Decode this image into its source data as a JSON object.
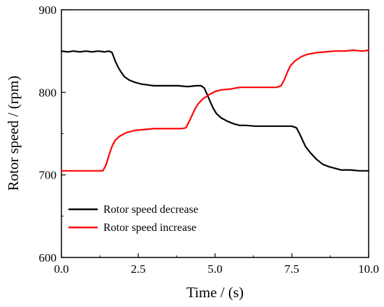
{
  "chart_data": {
    "type": "line",
    "title": "",
    "xlabel": "Time / (s)",
    "ylabel": "Rotor speed / (rpm)",
    "xlim": [
      0,
      10
    ],
    "ylim": [
      600,
      900
    ],
    "xticks": [
      "0.0",
      "2.5",
      "5.0",
      "7.5",
      "10.0"
    ],
    "yticks": [
      "600",
      "700",
      "800",
      "900"
    ],
    "grid": false,
    "legend_position": "bottom-left",
    "series": [
      {
        "name": "Rotor speed decrease",
        "color": "#000000",
        "points": [
          [
            0.0,
            850
          ],
          [
            0.2,
            849
          ],
          [
            0.4,
            850
          ],
          [
            0.6,
            849
          ],
          [
            0.8,
            850
          ],
          [
            1.0,
            849
          ],
          [
            1.2,
            850
          ],
          [
            1.4,
            849
          ],
          [
            1.55,
            850
          ],
          [
            1.65,
            848
          ],
          [
            1.75,
            838
          ],
          [
            1.85,
            830
          ],
          [
            1.95,
            824
          ],
          [
            2.05,
            819
          ],
          [
            2.2,
            815
          ],
          [
            2.4,
            812
          ],
          [
            2.6,
            810
          ],
          [
            2.8,
            809
          ],
          [
            3.0,
            808
          ],
          [
            3.2,
            808
          ],
          [
            3.5,
            808
          ],
          [
            3.8,
            808
          ],
          [
            4.1,
            807
          ],
          [
            4.4,
            808
          ],
          [
            4.55,
            808
          ],
          [
            4.65,
            805
          ],
          [
            4.75,
            797
          ],
          [
            4.85,
            788
          ],
          [
            4.95,
            780
          ],
          [
            5.05,
            774
          ],
          [
            5.2,
            769
          ],
          [
            5.4,
            765
          ],
          [
            5.6,
            762
          ],
          [
            5.8,
            760
          ],
          [
            6.0,
            760
          ],
          [
            6.3,
            759
          ],
          [
            6.6,
            759
          ],
          [
            6.9,
            759
          ],
          [
            7.2,
            759
          ],
          [
            7.5,
            759
          ],
          [
            7.65,
            757
          ],
          [
            7.75,
            750
          ],
          [
            7.85,
            742
          ],
          [
            7.95,
            734
          ],
          [
            8.1,
            727
          ],
          [
            8.3,
            719
          ],
          [
            8.5,
            713
          ],
          [
            8.7,
            710
          ],
          [
            8.9,
            708
          ],
          [
            9.1,
            706
          ],
          [
            9.4,
            706
          ],
          [
            9.7,
            705
          ],
          [
            10.0,
            705
          ]
        ]
      },
      {
        "name": "Rotor speed increase",
        "color": "#ff0000",
        "points": [
          [
            0.0,
            705
          ],
          [
            0.3,
            705
          ],
          [
            0.6,
            705
          ],
          [
            0.9,
            705
          ],
          [
            1.2,
            705
          ],
          [
            1.35,
            705
          ],
          [
            1.45,
            712
          ],
          [
            1.55,
            724
          ],
          [
            1.65,
            735
          ],
          [
            1.75,
            742
          ],
          [
            1.9,
            747
          ],
          [
            2.1,
            751
          ],
          [
            2.4,
            754
          ],
          [
            2.7,
            755
          ],
          [
            3.0,
            756
          ],
          [
            3.3,
            756
          ],
          [
            3.6,
            756
          ],
          [
            3.9,
            756
          ],
          [
            4.05,
            757
          ],
          [
            4.15,
            764
          ],
          [
            4.25,
            772
          ],
          [
            4.35,
            780
          ],
          [
            4.45,
            786
          ],
          [
            4.6,
            792
          ],
          [
            4.8,
            797
          ],
          [
            5.0,
            801
          ],
          [
            5.2,
            803
          ],
          [
            5.5,
            804
          ],
          [
            5.8,
            806
          ],
          [
            6.1,
            806
          ],
          [
            6.4,
            806
          ],
          [
            6.7,
            806
          ],
          [
            7.0,
            806
          ],
          [
            7.15,
            808
          ],
          [
            7.25,
            815
          ],
          [
            7.35,
            824
          ],
          [
            7.45,
            832
          ],
          [
            7.6,
            838
          ],
          [
            7.8,
            843
          ],
          [
            8.0,
            846
          ],
          [
            8.3,
            848
          ],
          [
            8.6,
            849
          ],
          [
            8.9,
            850
          ],
          [
            9.2,
            850
          ],
          [
            9.5,
            851
          ],
          [
            9.8,
            850
          ],
          [
            10.0,
            851
          ]
        ]
      }
    ]
  }
}
